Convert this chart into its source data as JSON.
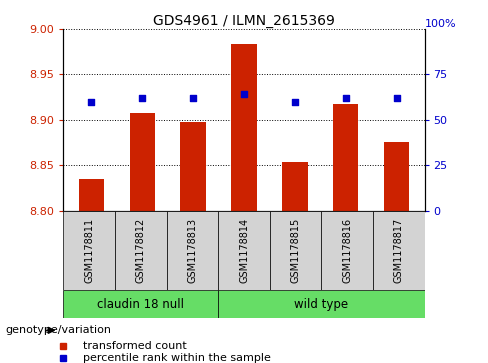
{
  "title": "GDS4961 / ILMN_2615369",
  "samples": [
    "GSM1178811",
    "GSM1178812",
    "GSM1178813",
    "GSM1178814",
    "GSM1178815",
    "GSM1178816",
    "GSM1178817"
  ],
  "bar_values": [
    8.835,
    8.908,
    8.898,
    8.984,
    8.853,
    8.917,
    8.876
  ],
  "bar_base": 8.8,
  "percentile_values": [
    60,
    62,
    62,
    64,
    60,
    62,
    62
  ],
  "ylim_left": [
    8.8,
    9.0
  ],
  "ylim_right": [
    0,
    100
  ],
  "yticks_left": [
    8.8,
    8.85,
    8.9,
    8.95,
    9.0
  ],
  "yticks_right": [
    0,
    25,
    50,
    75
  ],
  "bar_color": "#cc2200",
  "dot_color": "#0000cc",
  "group0_label": "claudin 18 null",
  "group0_indices": [
    0,
    1,
    2
  ],
  "group1_label": "wild type",
  "group1_indices": [
    3,
    4,
    5,
    6
  ],
  "group_color": "#66dd66",
  "group_label": "genotype/variation",
  "legend_bar_label": "transformed count",
  "legend_dot_label": "percentile rank within the sample",
  "bar_width": 0.5,
  "xlim": [
    -0.55,
    6.55
  ]
}
